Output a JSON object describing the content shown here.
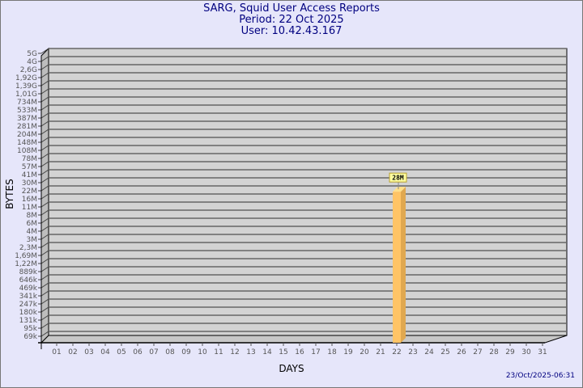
{
  "chart_data": {
    "type": "bar",
    "title": "SARG, Squid User Access Reports",
    "subtitle": [
      "Period: 22 Oct 2025",
      "User: 10.42.43.167"
    ],
    "xlabel": "DAYS",
    "ylabel": "BYTES",
    "categories": [
      "01",
      "02",
      "03",
      "04",
      "05",
      "06",
      "07",
      "08",
      "09",
      "10",
      "11",
      "12",
      "13",
      "14",
      "15",
      "16",
      "17",
      "18",
      "19",
      "20",
      "21",
      "22",
      "23",
      "24",
      "25",
      "26",
      "27",
      "28",
      "29",
      "30",
      "31"
    ],
    "values": {
      "22": "28M"
    },
    "value_bytes": {
      "22": 28000000
    },
    "y_ticks": [
      "5G",
      "4G",
      "2,6G",
      "1,92G",
      "1,39G",
      "1,01G",
      "734M",
      "533M",
      "387M",
      "281M",
      "204M",
      "148M",
      "108M",
      "78M",
      "57M",
      "41M",
      "30M",
      "22M",
      "16M",
      "11M",
      "8M",
      "6M",
      "4M",
      "3M",
      "2,3M",
      "1,69M",
      "1,22M",
      "889k",
      "646k",
      "469k",
      "341k",
      "247k",
      "180k",
      "131k",
      "95k",
      "69k"
    ],
    "y_scale": "log",
    "grid": true,
    "bar_color": "#ffc466",
    "plane_color": "#d3d3d3"
  },
  "footer": {
    "timestamp": "23/Oct/2025-06:31"
  }
}
